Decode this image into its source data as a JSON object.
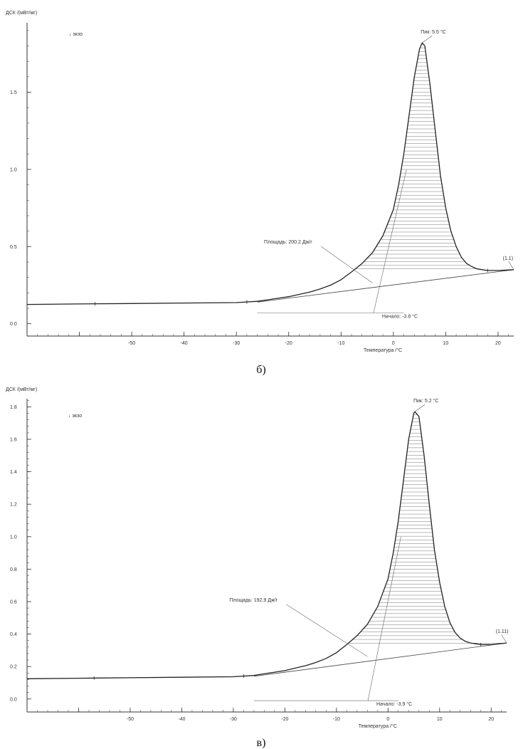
{
  "chart_data": [
    {
      "type": "line",
      "caption": "б)",
      "ylabel": "ДСК /(мВт/мг)",
      "xlabel": "Температура /°С",
      "exo_label": "↓ экзо",
      "xlim": [
        -70,
        23
      ],
      "ylim": [
        -0.08,
        1.95
      ],
      "x_ticks": [
        -60,
        -50,
        -40,
        -30,
        -20,
        -10,
        0,
        10,
        20
      ],
      "x_tick_labels": [
        "",
        "-50",
        "-40",
        "-30",
        "-20",
        "-10",
        "0",
        "10",
        "20"
      ],
      "y_ticks": [
        0.0,
        0.5,
        1.0,
        1.5
      ],
      "y_tick_labels": [
        "0.0",
        "0.5",
        "1.0",
        "1.5"
      ],
      "series": [
        {
          "x": [
            -70,
            -60,
            -50,
            -40,
            -30,
            -26,
            -24,
            -22,
            -20,
            -18,
            -16,
            -14,
            -12,
            -10,
            -8,
            -6,
            -4,
            -2,
            0,
            1,
            2,
            3,
            4,
            5,
            5.5,
            6,
            7,
            8,
            9,
            10,
            11,
            12,
            13,
            14,
            15,
            16,
            17,
            18,
            20,
            23
          ],
          "y": [
            0.125,
            0.128,
            0.131,
            0.134,
            0.137,
            0.145,
            0.155,
            0.165,
            0.175,
            0.19,
            0.205,
            0.225,
            0.25,
            0.285,
            0.335,
            0.39,
            0.46,
            0.57,
            0.74,
            0.9,
            1.1,
            1.35,
            1.6,
            1.78,
            1.82,
            1.8,
            1.55,
            1.25,
            0.96,
            0.75,
            0.6,
            0.5,
            0.43,
            0.39,
            0.37,
            0.355,
            0.35,
            0.345,
            0.345,
            0.35
          ]
        }
      ],
      "baseline": {
        "x": [
          -26,
          23
        ],
        "y": [
          0.14,
          0.35
        ]
      },
      "annotations": {
        "peak": {
          "text": "Пик: 5.5 °C",
          "x": 5.5,
          "y": 1.82
        },
        "area": {
          "text": "Площадь: 200.2 Дж/г"
        },
        "onset": {
          "text": "Начало: -3.8 °C",
          "x": -3.8
        },
        "end_marker": {
          "text": "(1.1)"
        }
      }
    },
    {
      "type": "line",
      "caption": "в)",
      "ylabel": "ДСК /(мВт/мг)",
      "xlabel": "Температура /°С",
      "exo_label": "↓ экзо",
      "xlim": [
        -70,
        23
      ],
      "ylim": [
        -0.08,
        1.85
      ],
      "x_ticks": [
        -60,
        -50,
        -40,
        -30,
        -20,
        -10,
        0,
        10,
        20
      ],
      "x_tick_labels": [
        "",
        "-50",
        "-40",
        "-30",
        "-20",
        "-10",
        "0",
        "10",
        "20"
      ],
      "y_ticks": [
        0.0,
        0.2,
        0.4,
        0.6,
        0.8,
        1.0,
        1.2,
        1.4,
        1.6,
        1.8
      ],
      "y_tick_labels": [
        "0.0",
        "0.2",
        "0.4",
        "0.6",
        "0.8",
        "1.0",
        "1.2",
        "1.4",
        "1.6",
        "1.8"
      ],
      "series": [
        {
          "x": [
            -70,
            -60,
            -50,
            -40,
            -30,
            -26,
            -24,
            -22,
            -20,
            -18,
            -16,
            -14,
            -12,
            -10,
            -8,
            -6,
            -4,
            -2,
            0,
            1,
            2,
            3,
            4,
            5,
            5.2,
            6,
            7,
            8,
            9,
            10,
            11,
            12,
            13,
            14,
            15,
            16,
            17,
            18,
            20,
            23
          ],
          "y": [
            0.125,
            0.128,
            0.131,
            0.134,
            0.137,
            0.145,
            0.155,
            0.165,
            0.175,
            0.19,
            0.205,
            0.225,
            0.25,
            0.285,
            0.335,
            0.39,
            0.46,
            0.57,
            0.74,
            0.9,
            1.1,
            1.35,
            1.6,
            1.76,
            1.77,
            1.74,
            1.5,
            1.2,
            0.92,
            0.72,
            0.57,
            0.47,
            0.41,
            0.375,
            0.355,
            0.345,
            0.34,
            0.335,
            0.335,
            0.345
          ]
        }
      ],
      "baseline": {
        "x": [
          -26,
          23
        ],
        "y": [
          0.14,
          0.345
        ]
      },
      "annotations": {
        "peak": {
          "text": "Пик: 5.2 °C",
          "x": 5.2,
          "y": 1.77
        },
        "area": {
          "text": "Площадь: 192,9 Дж/г"
        },
        "onset": {
          "text": "Начало: -3.9 °C",
          "x": -3.9
        },
        "end_marker": {
          "text": "(1.11)"
        }
      }
    }
  ]
}
